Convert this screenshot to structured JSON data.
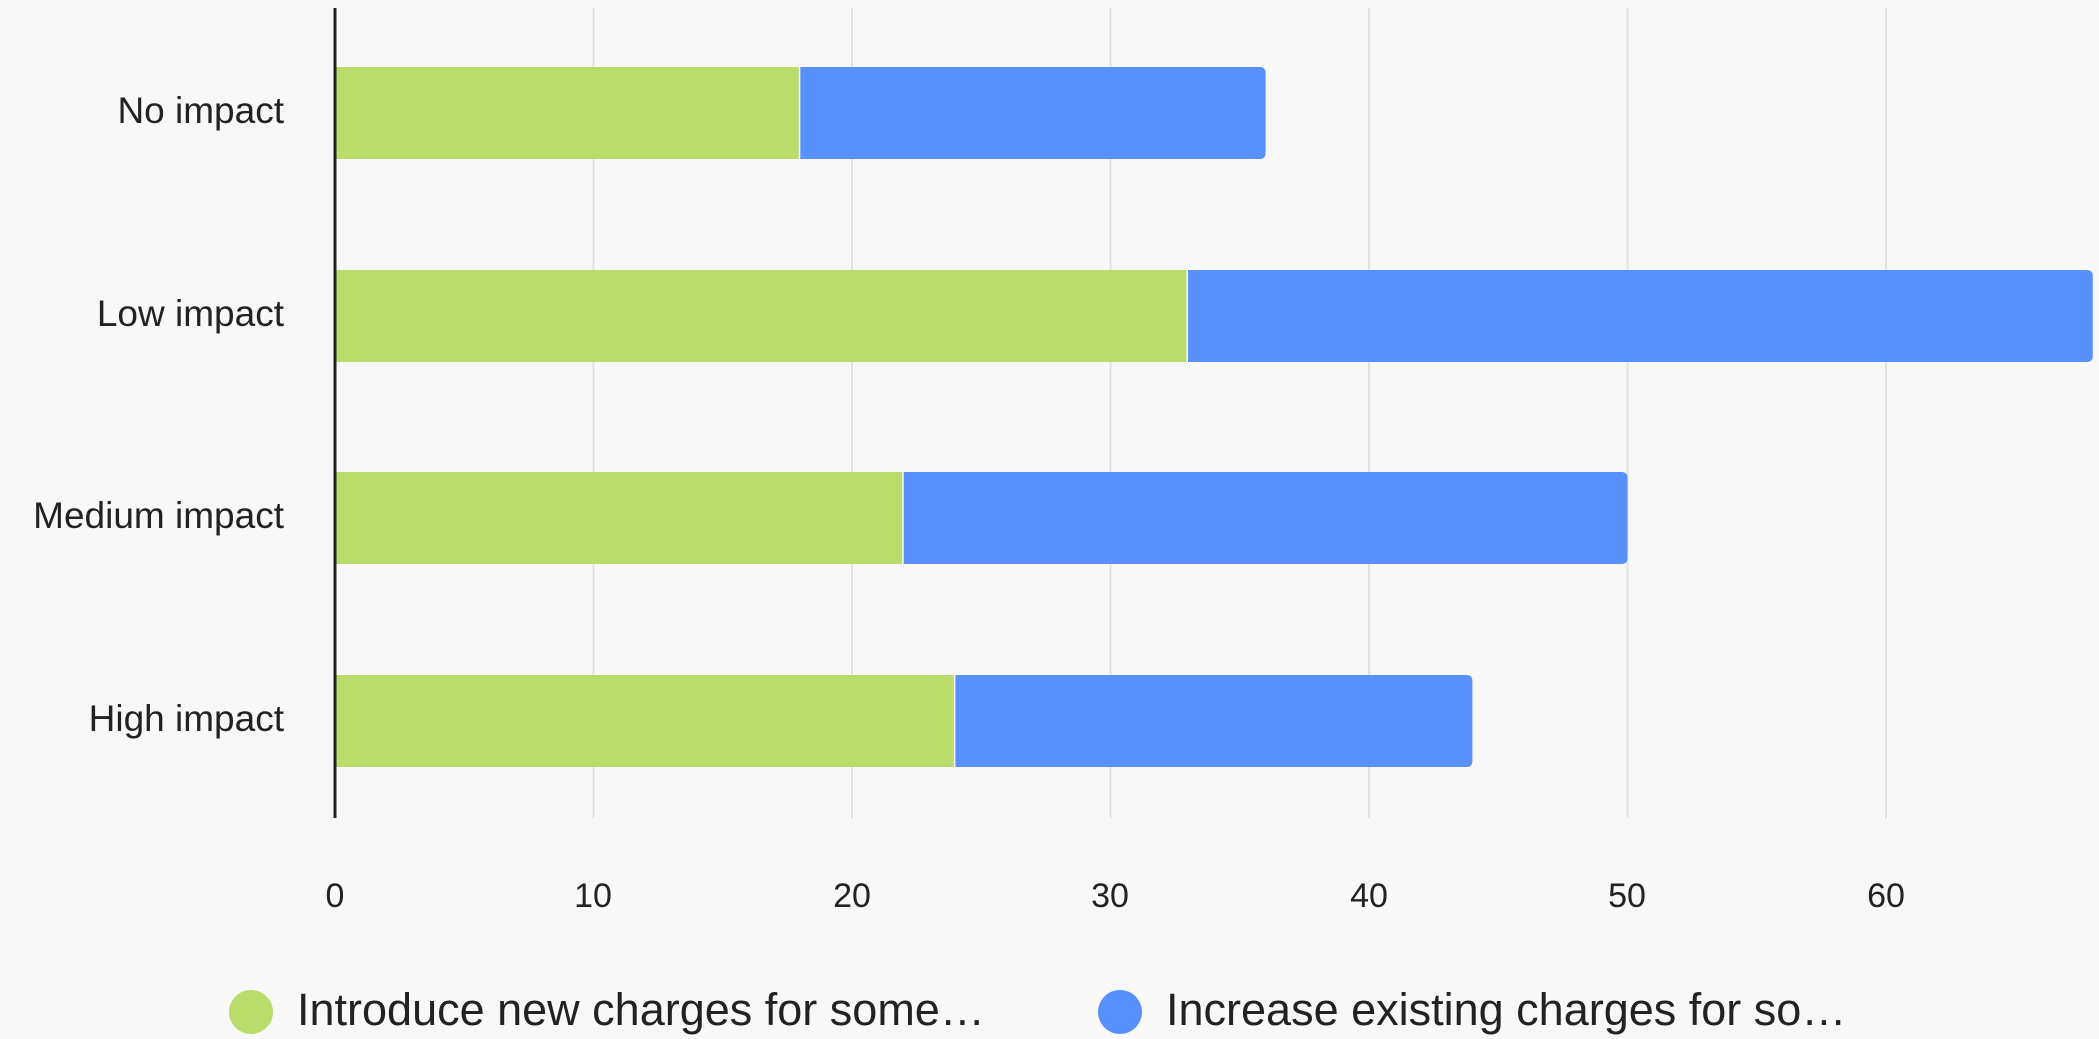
{
  "chart_data": {
    "type": "bar",
    "orientation": "horizontal",
    "stacked": true,
    "title": "",
    "xlabel": "",
    "ylabel": "",
    "categories": [
      "No impact",
      "Low impact",
      "Medium impact",
      "High impact"
    ],
    "series": [
      {
        "name": "Introduce new charges for some…",
        "color": "#b9dc6a",
        "values": [
          18,
          33,
          22,
          24
        ]
      },
      {
        "name": "Increase existing charges for so…",
        "color": "#5890fe",
        "values": [
          18,
          35,
          28,
          20
        ]
      }
    ],
    "xlim": [
      0,
      68
    ],
    "x_ticks": [
      0,
      10,
      20,
      30,
      40,
      50,
      60
    ],
    "x_tick_labels": [
      "0",
      "10",
      "20",
      "30",
      "40",
      "50",
      "60"
    ],
    "grid": true,
    "legend_position": "bottom"
  },
  "colors": {
    "background": "#f8f8f9",
    "gridline": "#e2e2e2",
    "axis": "#222222",
    "separator": "#ffffff"
  }
}
